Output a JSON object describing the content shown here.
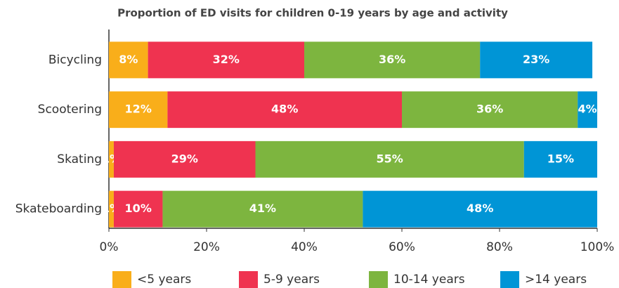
{
  "chart_data": {
    "type": "stacked-bar-horizontal",
    "title": "Proportion of ED visits for children 0-19 years by age and activity",
    "categories": [
      "Bicycling",
      "Scootering",
      "Skating",
      "Skateboarding"
    ],
    "series": [
      {
        "name": "<5 years",
        "color": "#f9ae1a",
        "values": [
          8,
          12,
          1,
          1
        ],
        "value_labels": [
          "8%",
          "12%",
          "1%",
          "1%"
        ]
      },
      {
        "name": "5-9 years",
        "color": "#ef3350",
        "values": [
          32,
          48,
          29,
          10
        ],
        "value_labels": [
          "32%",
          "48%",
          "29%",
          "10%"
        ]
      },
      {
        "name": "10-14 years",
        "color": "#7db53f",
        "values": [
          36,
          36,
          55,
          41
        ],
        "value_labels": [
          "36%",
          "36%",
          "55%",
          "41%"
        ]
      },
      {
        "name": ">14 years",
        "color": "#0095d6",
        "values": [
          23,
          4,
          15,
          48
        ],
        "value_labels": [
          "23%",
          "4%",
          "15%",
          "48%"
        ]
      }
    ],
    "xlim": [
      0,
      100
    ],
    "xticks": [
      {
        "value": 0,
        "label": "0%"
      },
      {
        "value": 20,
        "label": "20%"
      },
      {
        "value": 40,
        "label": "40%"
      },
      {
        "value": 60,
        "label": "60%"
      },
      {
        "value": 80,
        "label": "80%"
      },
      {
        "value": 100,
        "label": "100%"
      }
    ],
    "legend": "bottom"
  }
}
